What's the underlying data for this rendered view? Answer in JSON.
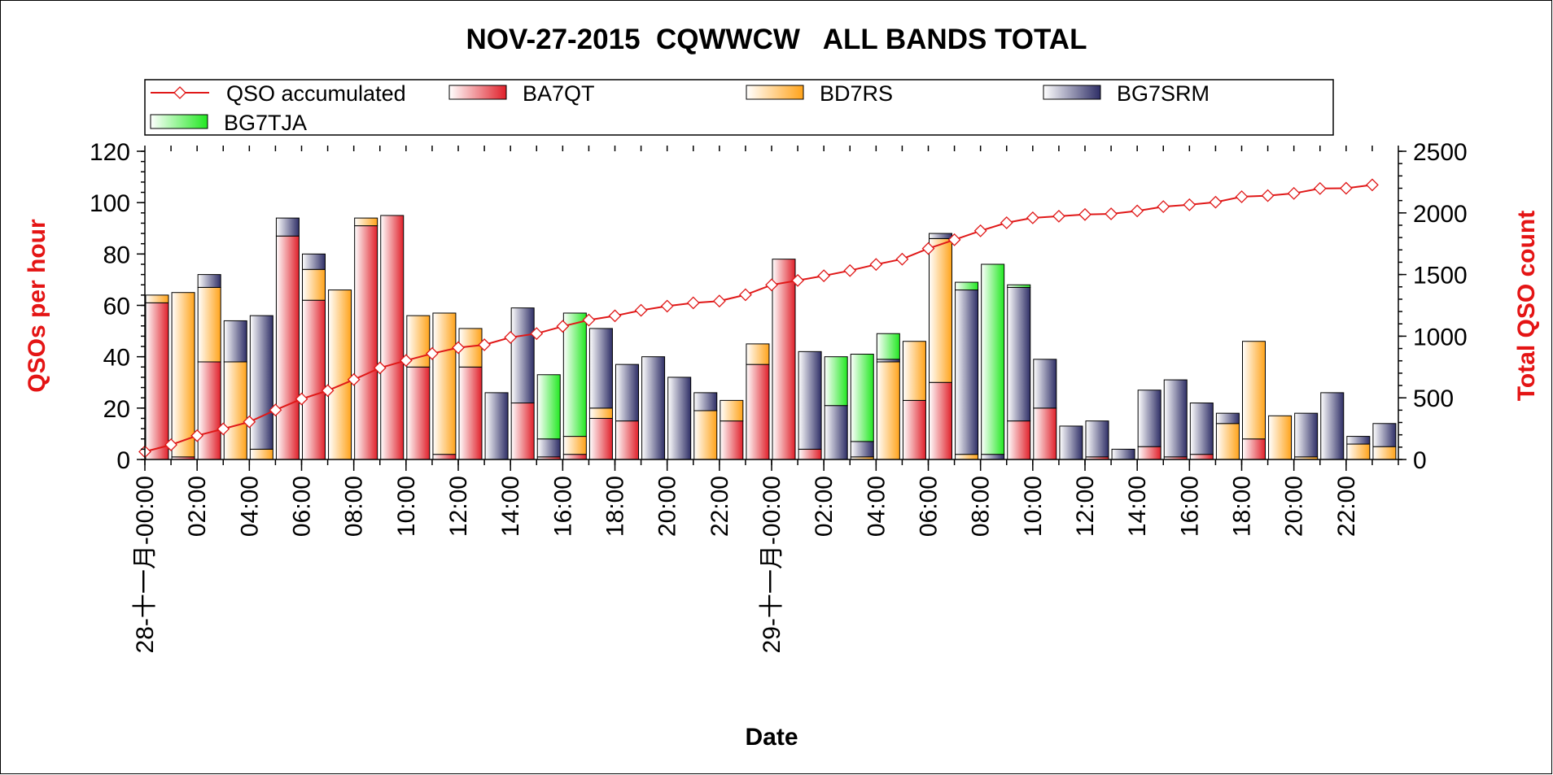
{
  "chart_data": {
    "type": "bar",
    "title": "NOV-27-2015  CQWWCW   ALL BANDS TOTAL",
    "xlabel": "Date",
    "ylabel": "QSOs per hour",
    "y2label": "Total QSO count",
    "ylim": [
      0,
      120
    ],
    "y2lim": [
      0,
      2500
    ],
    "y_ticks": [
      "0",
      "20",
      "40",
      "60",
      "80",
      "100",
      "120"
    ],
    "y2_ticks": [
      "0",
      "500",
      "1000",
      "1500",
      "2000",
      "2500"
    ],
    "stacked": true,
    "legend_position": "top",
    "grid": false,
    "x_tick_labels": [
      "28-十一月-00:00",
      "02:00",
      "04:00",
      "06:00",
      "08:00",
      "10:00",
      "12:00",
      "14:00",
      "16:00",
      "18:00",
      "20:00",
      "22:00",
      "29-十一月-00:00",
      "02:00",
      "04:00",
      "06:00",
      "08:00",
      "10:00",
      "12:00",
      "14:00",
      "16:00",
      "18:00",
      "20:00",
      "22:00"
    ],
    "series": [
      {
        "name": "BA7QT",
        "color": "#e0202a",
        "values": [
          61,
          1,
          38,
          0,
          0,
          87,
          62,
          0,
          91,
          95,
          36,
          2,
          36,
          0,
          22,
          1,
          2,
          16,
          15,
          0,
          0,
          0,
          15,
          37,
          78,
          4,
          0,
          0,
          0,
          23,
          30,
          0,
          0,
          15,
          20,
          0,
          1,
          0,
          5,
          1,
          2,
          0,
          8,
          0,
          0,
          0,
          0,
          0
        ]
      },
      {
        "name": "BD7RS",
        "color": "#ffa31a",
        "values": [
          3,
          64,
          29,
          38,
          4,
          0,
          12,
          66,
          3,
          0,
          20,
          55,
          15,
          0,
          0,
          0,
          7,
          4,
          0,
          0,
          0,
          19,
          8,
          8,
          0,
          0,
          0,
          1,
          38,
          23,
          56,
          2,
          0,
          0,
          0,
          0,
          0,
          0,
          0,
          0,
          0,
          14,
          38,
          17,
          1,
          0,
          6,
          5
        ]
      },
      {
        "name": "BG7SRM",
        "color": "#2e2e66",
        "values": [
          0,
          0,
          5,
          16,
          52,
          7,
          6,
          0,
          0,
          0,
          0,
          0,
          0,
          26,
          37,
          7,
          0,
          31,
          22,
          40,
          32,
          7,
          0,
          0,
          0,
          38,
          21,
          6,
          1,
          0,
          2,
          64,
          2,
          52,
          19,
          13,
          14,
          4,
          22,
          30,
          20,
          4,
          0,
          0,
          17,
          26,
          3,
          9
        ]
      },
      {
        "name": "BG7TJA",
        "color": "#22e822",
        "values": [
          0,
          0,
          0,
          0,
          0,
          0,
          0,
          0,
          0,
          0,
          0,
          0,
          0,
          0,
          0,
          25,
          48,
          0,
          0,
          0,
          0,
          0,
          0,
          0,
          0,
          0,
          19,
          34,
          10,
          0,
          0,
          3,
          74,
          1,
          0,
          0,
          0,
          0,
          0,
          0,
          0,
          0,
          0,
          0,
          0,
          0,
          0,
          0
        ]
      }
    ],
    "line_series": {
      "name": "QSO accumulated",
      "color": "#e01818",
      "axis": "right",
      "values": [
        63,
        119,
        193,
        248,
        305,
        401,
        491,
        559,
        648,
        743,
        803,
        859,
        907,
        930,
        990,
        1021,
        1080,
        1131,
        1165,
        1210,
        1244,
        1270,
        1285,
        1336,
        1416,
        1452,
        1490,
        1532,
        1582,
        1625,
        1711,
        1782,
        1855,
        1920,
        1960,
        1973,
        1987,
        1992,
        2016,
        2051,
        2066,
        2087,
        2131,
        2140,
        2158,
        2198,
        2200,
        2227
      ]
    }
  }
}
